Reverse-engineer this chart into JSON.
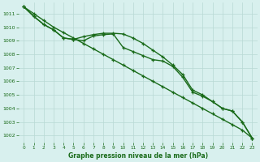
{
  "title": "Graphe pression niveau de la mer (hPa)",
  "x_values": [
    0,
    1,
    2,
    3,
    4,
    5,
    6,
    7,
    8,
    9,
    10,
    11,
    12,
    13,
    14,
    15,
    16,
    17,
    18,
    19,
    20,
    21,
    22,
    23
  ],
  "s1": [
    1011.5,
    1010.8,
    1010.2,
    1009.8,
    1009.2,
    1009.1,
    1009.0,
    1009.35,
    1009.45,
    1009.5,
    1008.5,
    1008.2,
    1007.9,
    1007.6,
    1007.5,
    1007.1,
    1006.3,
    1005.2,
    1004.9,
    1004.5,
    1004.0,
    1003.8,
    1003.0,
    1001.8
  ],
  "s2": [
    1011.5,
    1010.8,
    1010.2,
    1009.8,
    1009.2,
    1009.1,
    1009.3,
    1009.45,
    1009.55,
    1009.55,
    1009.5,
    1009.2,
    1008.8,
    1008.3,
    1007.8,
    1007.2,
    1006.5,
    1005.35,
    1005.0,
    1004.5,
    1004.0,
    1003.8,
    1003.0,
    1001.8
  ],
  "s3": [
    1011.5,
    1011.0,
    1010.5,
    1010.0,
    1009.6,
    1009.2,
    1008.8,
    1008.4,
    1008.0,
    1007.6,
    1007.2,
    1006.8,
    1006.4,
    1006.0,
    1005.6,
    1005.2,
    1004.8,
    1004.4,
    1004.0,
    1003.6,
    1003.2,
    1002.8,
    1002.4,
    1001.8
  ],
  "line_color": "#1a6b1a",
  "bg_color": "#d8f0ee",
  "grid_color": "#b8d8d4",
  "label_color": "#1a6b1a",
  "ylim": [
    1001.5,
    1011.8
  ],
  "yticks": [
    1002,
    1003,
    1004,
    1005,
    1006,
    1007,
    1008,
    1009,
    1010,
    1011
  ],
  "xlim": [
    -0.5,
    23.5
  ],
  "xticks": [
    0,
    1,
    2,
    3,
    4,
    5,
    6,
    7,
    8,
    9,
    10,
    11,
    12,
    13,
    14,
    15,
    16,
    17,
    18,
    19,
    20,
    21,
    22,
    23
  ]
}
